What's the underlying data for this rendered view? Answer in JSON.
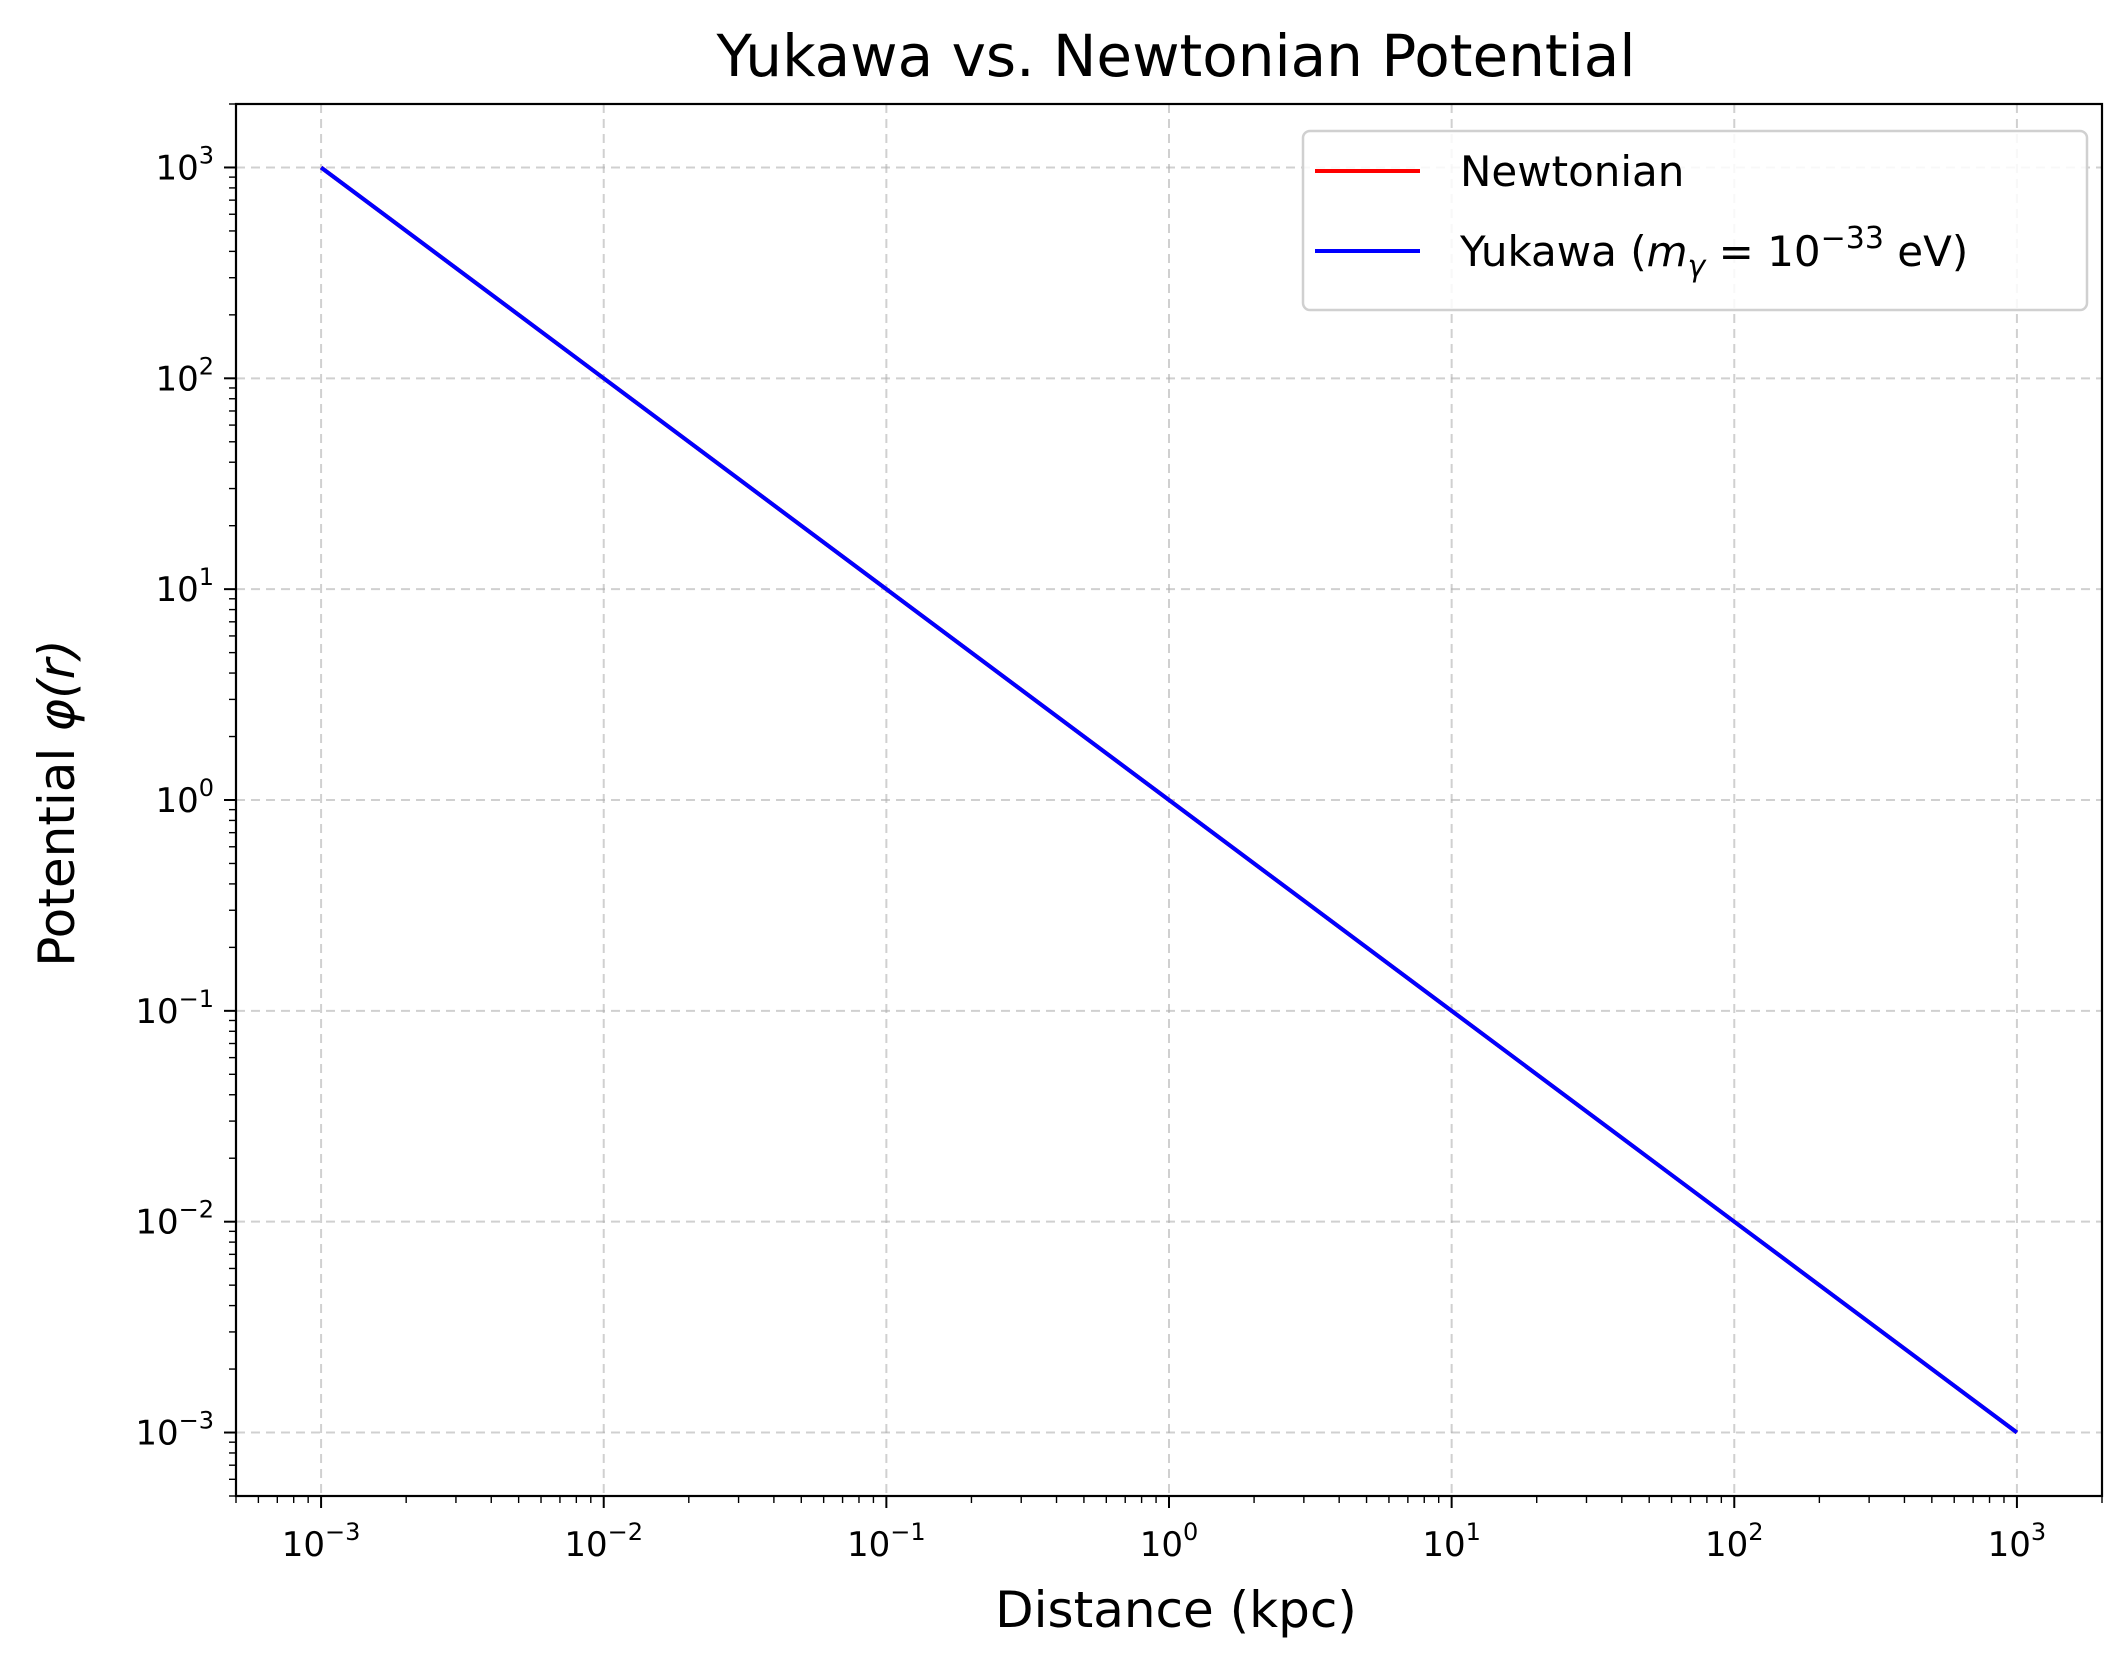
{
  "chart_data": {
    "type": "line",
    "title": "Yukawa vs. Newtonian Potential",
    "xlabel": "Distance (kpc)",
    "ylabel_prefix": "Potential ",
    "ylabel_math": "φ(r)",
    "xscale": "log",
    "yscale": "log",
    "xlim": [
      0.0005,
      2000
    ],
    "ylim": [
      0.0005,
      2000
    ],
    "x_ticks": [
      {
        "value": 0.001,
        "base": "10",
        "exp": "−3"
      },
      {
        "value": 0.01,
        "base": "10",
        "exp": "−2"
      },
      {
        "value": 0.1,
        "base": "10",
        "exp": "−1"
      },
      {
        "value": 1,
        "base": "10",
        "exp": "0"
      },
      {
        "value": 10,
        "base": "10",
        "exp": "1"
      },
      {
        "value": 100,
        "base": "10",
        "exp": "2"
      },
      {
        "value": 1000,
        "base": "10",
        "exp": "3"
      }
    ],
    "y_ticks": [
      {
        "value": 0.001,
        "base": "10",
        "exp": "−3"
      },
      {
        "value": 0.01,
        "base": "10",
        "exp": "−2"
      },
      {
        "value": 0.1,
        "base": "10",
        "exp": "−1"
      },
      {
        "value": 1,
        "base": "10",
        "exp": "0"
      },
      {
        "value": 10,
        "base": "10",
        "exp": "1"
      },
      {
        "value": 100,
        "base": "10",
        "exp": "2"
      },
      {
        "value": 1000,
        "base": "10",
        "exp": "3"
      }
    ],
    "grid": true,
    "legend_position": "top-right",
    "series": [
      {
        "name": "Newtonian",
        "color": "#ff0000",
        "x": [
          0.001,
          0.01,
          0.1,
          1,
          10,
          100,
          1000
        ],
        "y": [
          1000,
          100,
          10,
          1,
          0.1,
          0.01,
          0.001
        ]
      },
      {
        "name": "Yukawa (mγ = 10⁻³³ eV)",
        "legend_parts": {
          "pre": "Yukawa (",
          "m": "m",
          "sub": "γ",
          "eq": " = 10",
          "sup": "−33",
          "post": " eV)"
        },
        "color": "#0000ff",
        "x": [
          0.001,
          0.01,
          0.1,
          1,
          10,
          100,
          1000
        ],
        "y": [
          1000,
          100,
          10,
          1,
          0.1,
          0.01,
          0.001
        ]
      }
    ]
  }
}
